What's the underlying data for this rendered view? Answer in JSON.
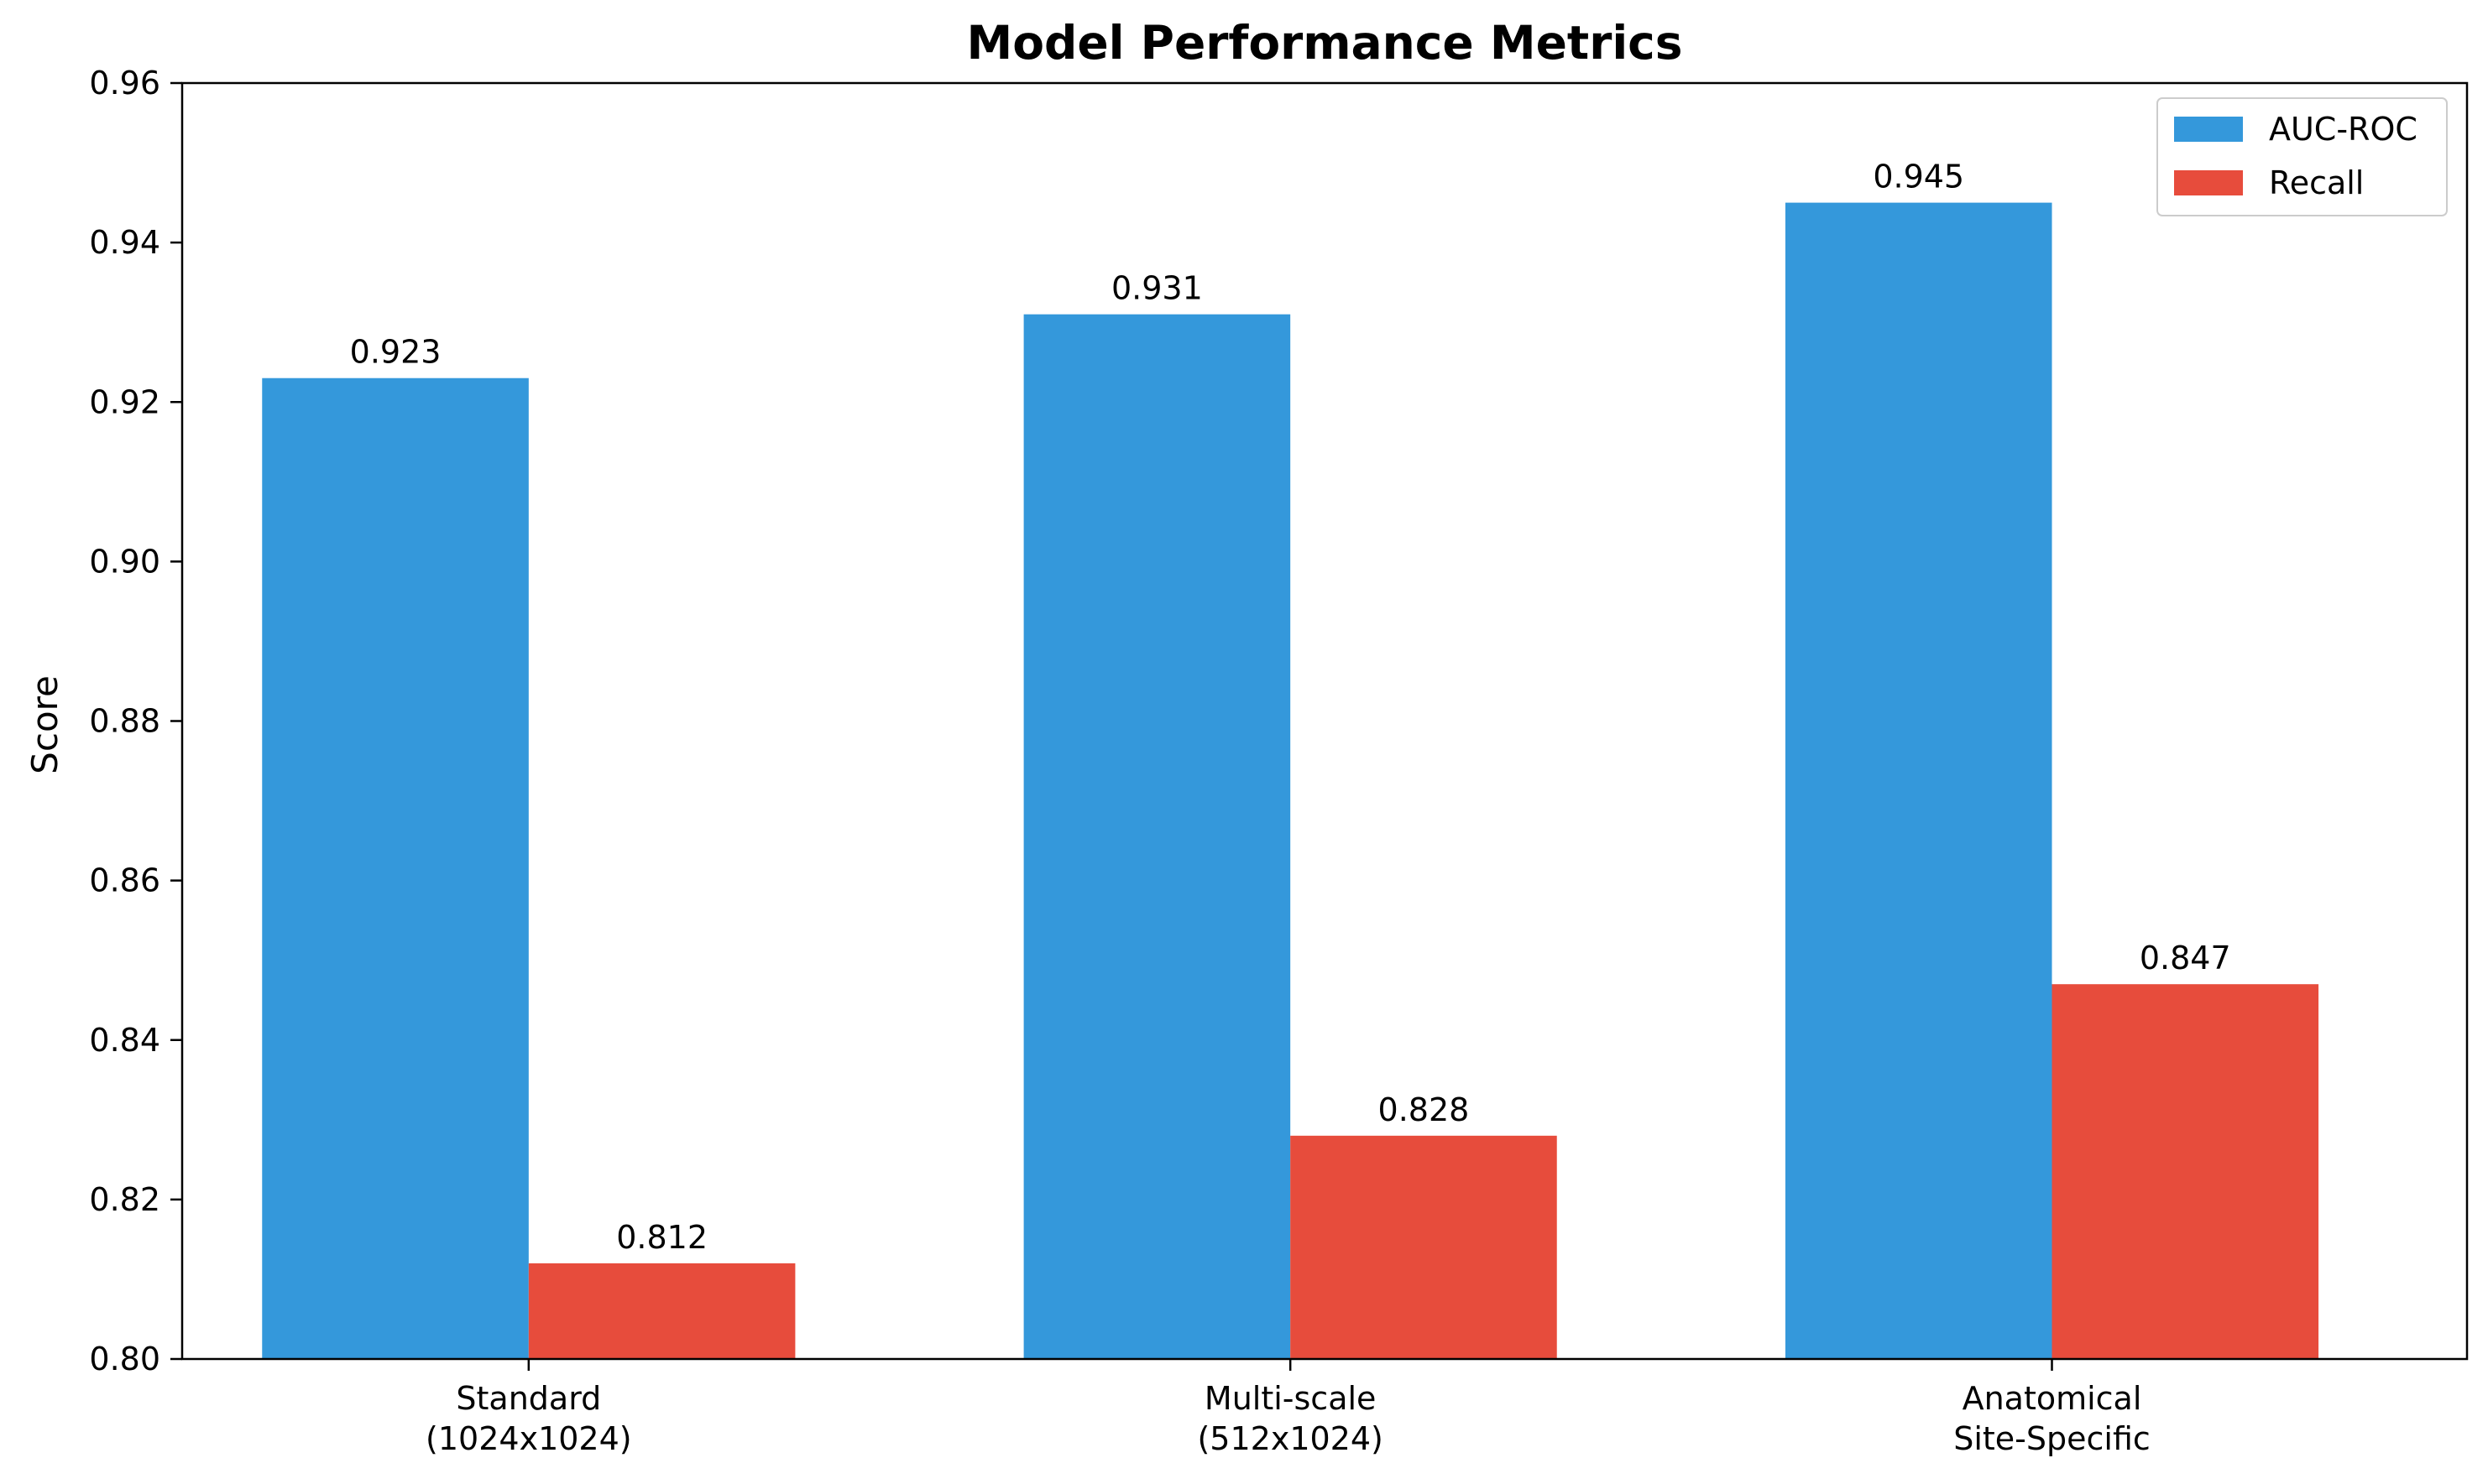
{
  "chart_data": {
    "type": "bar",
    "title": "Model Performance Metrics",
    "xlabel": "",
    "ylabel": "Score",
    "ylim": [
      0.8,
      0.96
    ],
    "yticks": [
      "0.80",
      "0.82",
      "0.84",
      "0.86",
      "0.88",
      "0.90",
      "0.92",
      "0.94",
      "0.96"
    ],
    "categories": [
      [
        "Standard",
        "(1024x1024)"
      ],
      [
        "Multi-scale",
        "(512x1024)"
      ],
      [
        "Anatomical",
        "Site-Specific"
      ]
    ],
    "series": [
      {
        "name": "AUC-ROC",
        "color": "#3498db",
        "values": [
          0.923,
          0.931,
          0.945
        ],
        "labels": [
          "0.923",
          "0.931",
          "0.945"
        ]
      },
      {
        "name": "Recall",
        "color": "#e74c3c",
        "values": [
          0.812,
          0.828,
          0.847
        ],
        "labels": [
          "0.812",
          "0.828",
          "0.847"
        ]
      }
    ],
    "grid": false,
    "legend": "top-right"
  }
}
